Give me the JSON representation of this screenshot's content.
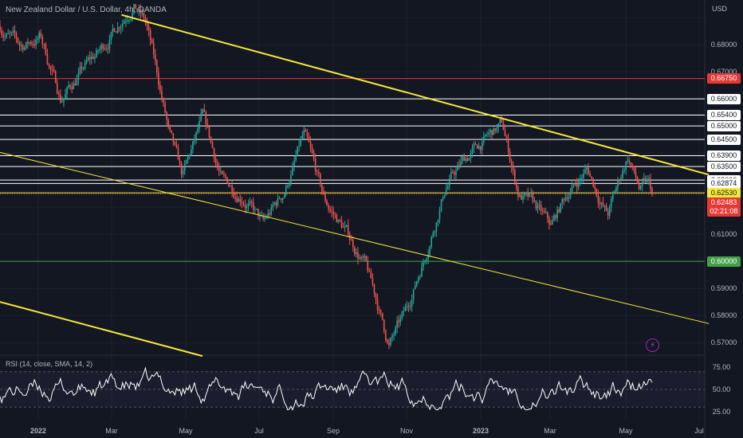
{
  "header": {
    "title": "New Zealand Dollar / U.S. Dollar, 4h, OANDA",
    "currency": "USD"
  },
  "colors": {
    "bg": "#131722",
    "grid": "#1e222d",
    "up": "#26a69a",
    "down": "#ef5350",
    "yellow": "#f5e83a",
    "red": "#e53935",
    "green": "#43a047",
    "white": "#ffffff",
    "rsi": "#ffffff"
  },
  "price_labels": [
    {
      "text": "0.68000",
      "kind": "axis"
    },
    {
      "text": "0.67000",
      "kind": "axis"
    },
    {
      "text": "0.66750",
      "kind": "red"
    },
    {
      "text": "0.66000",
      "kind": "white"
    },
    {
      "text": "0.65400",
      "kind": "white"
    },
    {
      "text": "0.65000",
      "kind": "white"
    },
    {
      "text": "0.64500",
      "kind": "white"
    },
    {
      "text": "0.63900",
      "kind": "white"
    },
    {
      "text": "0.63500",
      "kind": "white"
    },
    {
      "text": "0.63000",
      "kind": "white"
    },
    {
      "text": "0.62874",
      "kind": "white"
    },
    {
      "text": "0.62530",
      "kind": "yellow"
    },
    {
      "text": "0.62483",
      "kind": "red"
    },
    {
      "text": "02:21:08",
      "kind": "red"
    },
    {
      "text": "0.61000",
      "kind": "axis"
    },
    {
      "text": "0.60000",
      "kind": "green"
    },
    {
      "text": "0.59000",
      "kind": "axis"
    },
    {
      "text": "0.58000",
      "kind": "axis"
    },
    {
      "text": "0.57000",
      "kind": "axis"
    }
  ],
  "rsi": {
    "title": "RSI (14, close, SMA, 14, 2)",
    "ticks": [
      "75.00",
      "50.00",
      "25.00"
    ]
  },
  "chart_data": {
    "type": "candlestick",
    "title": "New Zealand Dollar / U.S. Dollar, 4h, OANDA",
    "ylim": [
      0.5665,
      0.6965
    ],
    "x_ticks": [
      "2022",
      "Mar",
      "May",
      "Jul",
      "Sep",
      "Nov",
      "2023",
      "Mar",
      "May",
      "Jul"
    ],
    "price_path": [
      {
        "t": 0.0,
        "p": 0.687
      },
      {
        "t": 0.5,
        "p": 0.679
      },
      {
        "t": 1.0,
        "p": 0.683
      },
      {
        "t": 1.5,
        "p": 0.66
      },
      {
        "t": 2.0,
        "p": 0.67
      },
      {
        "t": 2.5,
        "p": 0.678
      },
      {
        "t": 3.0,
        "p": 0.69
      },
      {
        "t": 3.3,
        "p": 0.696
      },
      {
        "t": 3.6,
        "p": 0.688
      },
      {
        "t": 4.0,
        "p": 0.66
      },
      {
        "t": 4.2,
        "p": 0.645
      },
      {
        "t": 4.5,
        "p": 0.63
      },
      {
        "t": 5.0,
        "p": 0.652
      },
      {
        "t": 5.5,
        "p": 0.629
      },
      {
        "t": 6.0,
        "p": 0.625
      },
      {
        "t": 6.5,
        "p": 0.613
      },
      {
        "t": 7.0,
        "p": 0.625
      },
      {
        "t": 7.5,
        "p": 0.646
      },
      {
        "t": 8.0,
        "p": 0.622
      },
      {
        "t": 8.5,
        "p": 0.612
      },
      {
        "t": 9.0,
        "p": 0.599
      },
      {
        "t": 9.3,
        "p": 0.585
      },
      {
        "t": 9.6,
        "p": 0.569
      },
      {
        "t": 10.0,
        "p": 0.58
      },
      {
        "t": 10.5,
        "p": 0.603
      },
      {
        "t": 11.0,
        "p": 0.628
      },
      {
        "t": 11.5,
        "p": 0.638
      },
      {
        "t": 12.0,
        "p": 0.645
      },
      {
        "t": 12.4,
        "p": 0.65
      },
      {
        "t": 12.8,
        "p": 0.625
      },
      {
        "t": 13.2,
        "p": 0.62
      },
      {
        "t": 13.6,
        "p": 0.612
      },
      {
        "t": 14.0,
        "p": 0.625
      },
      {
        "t": 14.5,
        "p": 0.634
      },
      {
        "t": 15.0,
        "p": 0.617
      },
      {
        "t": 15.5,
        "p": 0.639
      },
      {
        "t": 15.8,
        "p": 0.626
      },
      {
        "t": 16.0,
        "p": 0.628
      },
      {
        "t": 16.1,
        "p": 0.6248
      }
    ],
    "horizontal_levels": [
      {
        "price": 0.6675,
        "color": "red"
      },
      {
        "price": 0.66,
        "color": "white"
      },
      {
        "price": 0.654,
        "color": "white"
      },
      {
        "price": 0.65,
        "color": "white"
      },
      {
        "price": 0.645,
        "color": "white"
      },
      {
        "price": 0.639,
        "color": "white"
      },
      {
        "price": 0.635,
        "color": "white"
      },
      {
        "price": 0.63,
        "color": "white"
      },
      {
        "price": 0.62874,
        "color": "white"
      },
      {
        "price": 0.6253,
        "color": "yellow"
      },
      {
        "price": 0.6,
        "color": "green"
      }
    ],
    "trendlines": [
      {
        "from": {
          "t": 3.0,
          "p": 0.691
        },
        "to": {
          "t": 17.5,
          "p": 0.632
        },
        "color": "yellow",
        "width": 2
      },
      {
        "from": {
          "t": -0.5,
          "p": 0.642
        },
        "to": {
          "t": 17.5,
          "p": 0.577
        },
        "color": "yellow",
        "width": 1
      },
      {
        "from": {
          "t": -0.5,
          "p": 0.587
        },
        "to": {
          "t": 5.0,
          "p": 0.565
        },
        "color": "yellow",
        "width": 2
      }
    ],
    "last_price": 0.62483,
    "rsi": {
      "ylim": [
        15,
        85
      ],
      "levels": [
        70,
        50,
        30
      ],
      "tick_values": [
        75,
        50,
        25
      ],
      "range": [
        27,
        75
      ]
    }
  }
}
